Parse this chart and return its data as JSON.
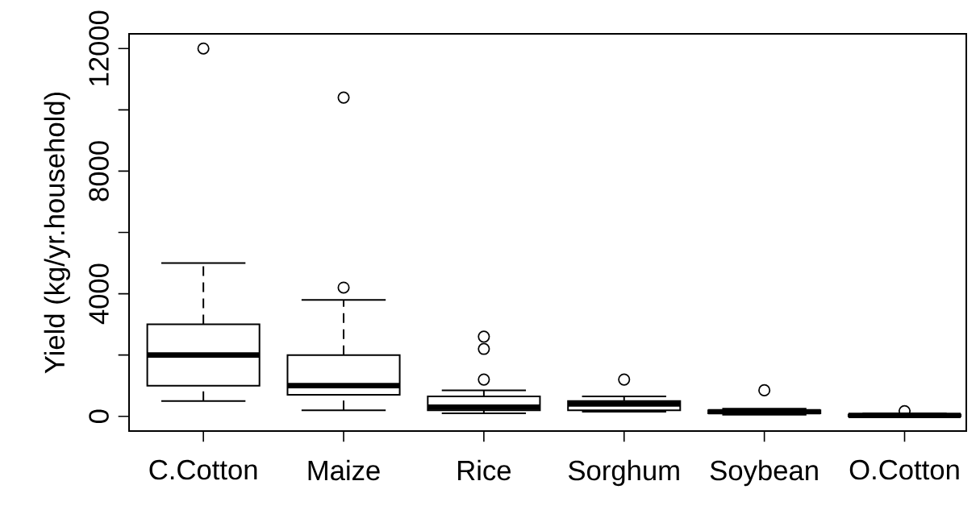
{
  "chart_data": {
    "type": "box",
    "ylabel": "Yield (kg/yr.household)",
    "categories": [
      "C.Cotton",
      "Maize",
      "Rice",
      "Sorghum",
      "Soybean",
      "O.Cotton"
    ],
    "boxes": [
      {
        "low": 500,
        "q1": 1000,
        "median": 2000,
        "q3": 3000,
        "high": 5000,
        "outliers": [
          12000
        ]
      },
      {
        "low": 200,
        "q1": 700,
        "median": 1000,
        "q3": 2000,
        "high": 3800,
        "outliers": [
          4200,
          10400
        ]
      },
      {
        "low": 100,
        "q1": 200,
        "median": 300,
        "q3": 650,
        "high": 850,
        "outliers": [
          1200,
          2200,
          2600
        ]
      },
      {
        "low": 150,
        "q1": 200,
        "median": 400,
        "q3": 500,
        "high": 650,
        "outliers": [
          1200
        ]
      },
      {
        "low": 50,
        "q1": 100,
        "median": 150,
        "q3": 200,
        "high": 250,
        "outliers": [
          850
        ]
      },
      {
        "low": 0,
        "q1": 0,
        "median": 30,
        "q3": 60,
        "high": 100,
        "outliers": [
          170
        ]
      }
    ],
    "ylim": [
      -480,
      12480
    ],
    "yticks": [
      0,
      {
        "value": 2000,
        "label": null
      },
      4000,
      {
        "value": 6000,
        "label": null
      },
      8000,
      {
        "value": 10000,
        "label": null
      },
      12000
    ]
  }
}
